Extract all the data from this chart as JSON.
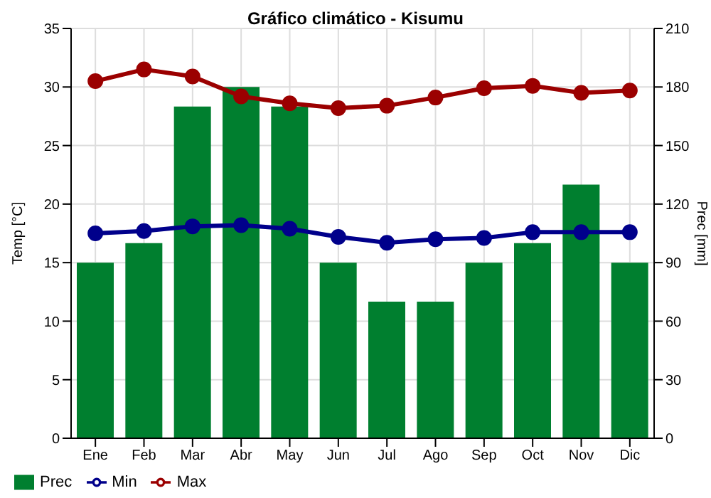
{
  "chart_data": {
    "type": "bar",
    "title": "Gráfico climático - Kisumu",
    "ylabel": "Temp [°C]",
    "y2label": "Prec [mm]",
    "categories": [
      "Ene",
      "Feb",
      "Mar",
      "Abr",
      "May",
      "Jun",
      "Jul",
      "Ago",
      "Sep",
      "Oct",
      "Nov",
      "Dic"
    ],
    "series": [
      {
        "name": "Prec",
        "axis": "y2",
        "color": "#007f2f",
        "values": [
          90,
          100,
          170,
          180,
          170,
          90,
          70,
          70,
          90,
          100,
          130,
          90
        ]
      },
      {
        "name": "Min",
        "type": "line",
        "color": "#00008b",
        "values": [
          17.5,
          17.7,
          18.1,
          18.2,
          17.9,
          17.2,
          16.7,
          17.0,
          17.1,
          17.6,
          17.6,
          17.6
        ]
      },
      {
        "name": "Max",
        "type": "line",
        "color": "#9b0000",
        "values": [
          30.5,
          31.5,
          30.9,
          29.2,
          28.6,
          28.2,
          28.4,
          29.1,
          29.9,
          30.1,
          29.5,
          29.7
        ]
      }
    ],
    "ylim": [
      0,
      35
    ],
    "yticks": [
      0,
      5,
      10,
      15,
      20,
      25,
      30,
      35
    ],
    "y2lim": [
      0,
      210
    ],
    "y2ticks": [
      0,
      30,
      60,
      90,
      120,
      150,
      180,
      210
    ],
    "grid": true,
    "legend": "bottom left",
    "marker": "circle",
    "line_style": "solid"
  }
}
